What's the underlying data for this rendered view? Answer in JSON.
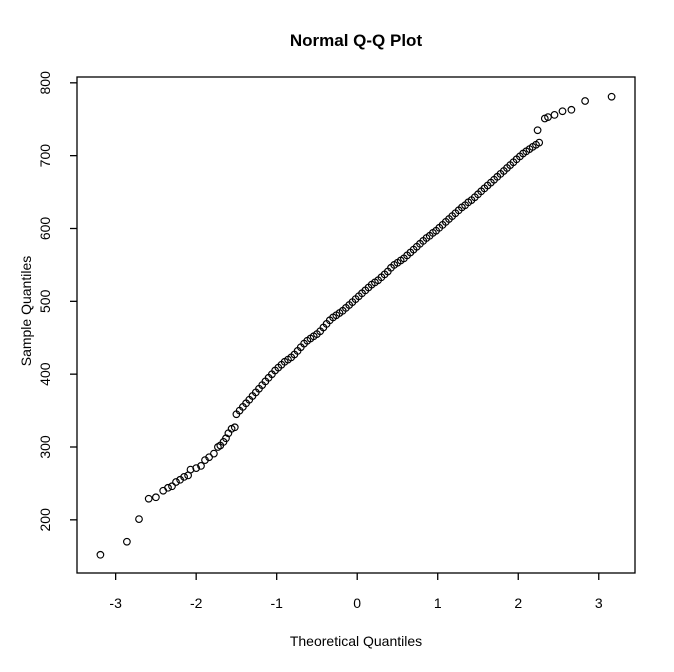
{
  "figure": {
    "title": "Normal Q-Q Plot",
    "x_axis_label": "Theoretical Quantiles",
    "y_axis_label": "Sample Quantiles"
  },
  "colors": {
    "foreground": "#000000",
    "background": "#ffffff",
    "marker_stroke": "#000000"
  },
  "chart_data": {
    "type": "scatter",
    "title": "Normal Q-Q Plot",
    "xlabel": "Theoretical Quantiles",
    "ylabel": "Sample Quantiles",
    "xlim": [
      -3.48,
      3.45
    ],
    "ylim": [
      127,
      808
    ],
    "x_ticks": [
      -3,
      -2,
      -1,
      0,
      1,
      2,
      3
    ],
    "y_ticks": [
      200,
      300,
      400,
      500,
      600,
      700,
      800
    ],
    "grid": false,
    "legend": "none",
    "marker": "open-circle",
    "n_points": 128,
    "points": [
      [
        -3.19,
        152
      ],
      [
        -2.86,
        170
      ],
      [
        -2.71,
        201
      ],
      [
        -2.59,
        229
      ],
      [
        -2.5,
        231
      ],
      [
        -2.41,
        240
      ],
      [
        -2.35,
        244
      ],
      [
        -2.3,
        246
      ],
      [
        -2.25,
        252
      ],
      [
        -2.2,
        255
      ],
      [
        -2.15,
        259
      ],
      [
        -2.1,
        261
      ],
      [
        -2.07,
        269
      ],
      [
        -2.0,
        271
      ],
      [
        -1.94,
        274
      ],
      [
        -1.89,
        282
      ],
      [
        -1.84,
        286
      ],
      [
        -1.78,
        291
      ],
      [
        -1.73,
        300
      ],
      [
        -1.7,
        302
      ],
      [
        -1.66,
        307
      ],
      [
        -1.63,
        312
      ],
      [
        -1.6,
        319
      ],
      [
        -1.56,
        325
      ],
      [
        -1.52,
        327
      ],
      [
        -1.5,
        345
      ],
      [
        -1.46,
        350
      ],
      [
        -1.42,
        355
      ],
      [
        -1.38,
        360
      ],
      [
        -1.34,
        365
      ],
      [
        -1.3,
        370
      ],
      [
        -1.26,
        375
      ],
      [
        -1.22,
        380
      ],
      [
        -1.18,
        385
      ],
      [
        -1.14,
        390
      ],
      [
        -1.1,
        395
      ],
      [
        -1.06,
        400
      ],
      [
        -1.02,
        405
      ],
      [
        -0.98,
        409
      ],
      [
        -0.94,
        413
      ],
      [
        -0.9,
        417
      ],
      [
        -0.86,
        420
      ],
      [
        -0.82,
        423
      ],
      [
        -0.78,
        427
      ],
      [
        -0.74,
        432
      ],
      [
        -0.7,
        437
      ],
      [
        -0.66,
        442
      ],
      [
        -0.62,
        446
      ],
      [
        -0.58,
        449
      ],
      [
        -0.54,
        452
      ],
      [
        -0.5,
        455
      ],
      [
        -0.46,
        459
      ],
      [
        -0.42,
        464
      ],
      [
        -0.38,
        469
      ],
      [
        -0.34,
        474
      ],
      [
        -0.3,
        478
      ],
      [
        -0.26,
        481
      ],
      [
        -0.22,
        484
      ],
      [
        -0.18,
        487
      ],
      [
        -0.14,
        491
      ],
      [
        -0.1,
        495
      ],
      [
        -0.06,
        499
      ],
      [
        -0.02,
        503
      ],
      [
        0.02,
        507
      ],
      [
        0.06,
        511
      ],
      [
        0.1,
        515
      ],
      [
        0.14,
        519
      ],
      [
        0.18,
        523
      ],
      [
        0.22,
        526
      ],
      [
        0.26,
        529
      ],
      [
        0.3,
        533
      ],
      [
        0.34,
        537
      ],
      [
        0.38,
        541
      ],
      [
        0.42,
        546
      ],
      [
        0.46,
        550
      ],
      [
        0.5,
        553
      ],
      [
        0.54,
        556
      ],
      [
        0.58,
        559
      ],
      [
        0.62,
        563
      ],
      [
        0.66,
        567
      ],
      [
        0.7,
        571
      ],
      [
        0.74,
        575
      ],
      [
        0.78,
        579
      ],
      [
        0.82,
        583
      ],
      [
        0.86,
        587
      ],
      [
        0.9,
        590
      ],
      [
        0.94,
        594
      ],
      [
        0.98,
        597
      ],
      [
        1.02,
        601
      ],
      [
        1.06,
        605
      ],
      [
        1.1,
        609
      ],
      [
        1.14,
        613
      ],
      [
        1.18,
        617
      ],
      [
        1.22,
        621
      ],
      [
        1.26,
        625
      ],
      [
        1.3,
        629
      ],
      [
        1.34,
        632
      ],
      [
        1.38,
        636
      ],
      [
        1.42,
        639
      ],
      [
        1.46,
        643
      ],
      [
        1.5,
        647
      ],
      [
        1.54,
        651
      ],
      [
        1.58,
        655
      ],
      [
        1.62,
        659
      ],
      [
        1.66,
        663
      ],
      [
        1.7,
        667
      ],
      [
        1.74,
        671
      ],
      [
        1.78,
        675
      ],
      [
        1.82,
        679
      ],
      [
        1.86,
        683
      ],
      [
        1.9,
        687
      ],
      [
        1.94,
        691
      ],
      [
        1.98,
        695
      ],
      [
        2.02,
        699
      ],
      [
        2.06,
        703
      ],
      [
        2.1,
        706
      ],
      [
        2.14,
        709
      ],
      [
        2.18,
        712
      ],
      [
        2.22,
        715
      ],
      [
        2.26,
        718
      ],
      [
        2.24,
        735
      ],
      [
        2.33,
        751
      ],
      [
        2.37,
        753
      ],
      [
        2.45,
        756
      ],
      [
        2.55,
        761
      ],
      [
        2.66,
        763
      ],
      [
        2.83,
        775
      ],
      [
        3.16,
        781
      ]
    ]
  }
}
